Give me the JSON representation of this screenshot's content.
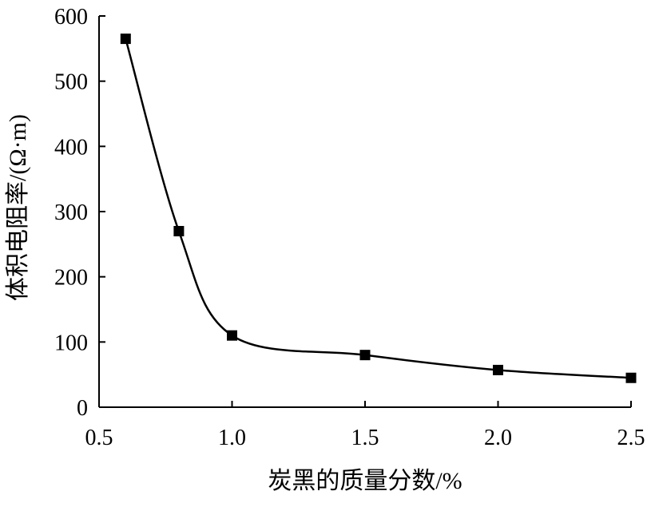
{
  "chart_data": {
    "type": "line",
    "title": "",
    "xlabel": "炭黑的质量分数/%",
    "ylabel": "体积电阻率/(Ω·m)",
    "xlim": [
      0.5,
      2.5
    ],
    "ylim": [
      0,
      600
    ],
    "x_ticks": [
      "0.5",
      "1.0",
      "1.5",
      "2.0",
      "2.5"
    ],
    "y_ticks": [
      "0",
      "100",
      "200",
      "300",
      "400",
      "500",
      "600"
    ],
    "grid": false,
    "legend": "none",
    "series": [
      {
        "x": [
          0.6,
          0.8,
          1.0,
          1.5,
          2.0,
          2.5
        ],
        "y": [
          565,
          270,
          110,
          80,
          57,
          45
        ],
        "marker": "square",
        "line_style": "smooth",
        "color": "#000000"
      }
    ]
  }
}
